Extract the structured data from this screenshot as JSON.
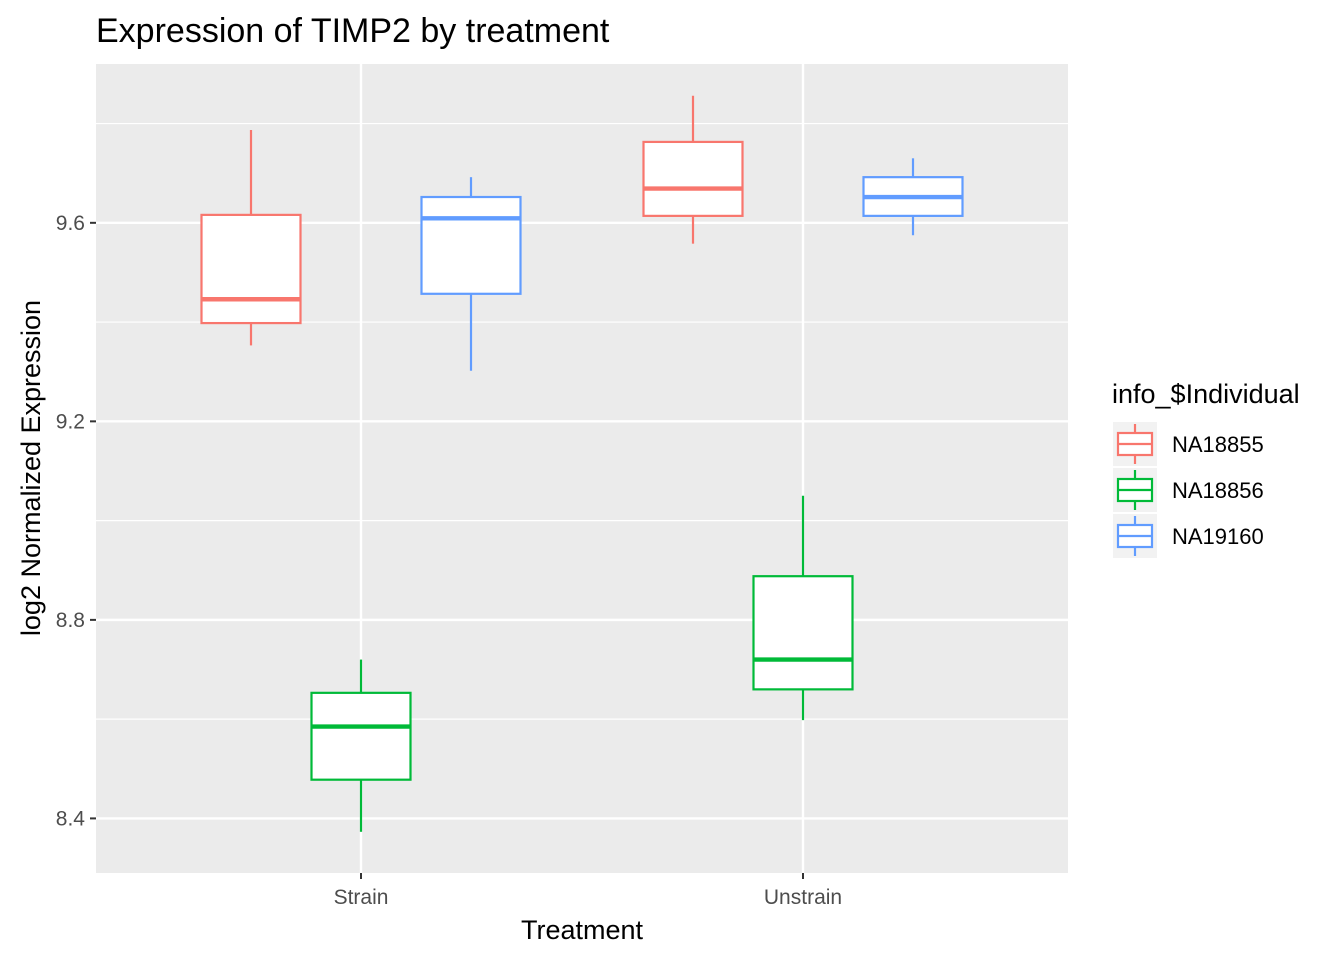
{
  "chart_data": {
    "type": "boxplot",
    "title": "Expression of TIMP2 by treatment",
    "xlabel": "Treatment",
    "ylabel": "log2 Normalized Expression",
    "categories": [
      "Strain",
      "Unstrain"
    ],
    "ylim": [
      8.29,
      9.92
    ],
    "yticks": [
      8.4,
      8.8,
      9.2,
      9.6
    ],
    "ytick_labels": [
      "8.4",
      "8.8",
      "9.2",
      "9.6"
    ],
    "grid": true,
    "legend": {
      "title": "info_$Individual",
      "position": "right",
      "entries": [
        "NA18855",
        "NA18856",
        "NA19160"
      ]
    },
    "series": [
      {
        "name": "NA18855",
        "color": "#F8766D",
        "boxes": [
          {
            "category": "Strain",
            "lower_whisker": 9.353,
            "q1": 9.398,
            "median": 9.446,
            "q3": 9.616,
            "upper_whisker": 9.787
          },
          {
            "category": "Unstrain",
            "lower_whisker": 9.558,
            "q1": 9.614,
            "median": 9.669,
            "q3": 9.763,
            "upper_whisker": 9.856
          }
        ]
      },
      {
        "name": "NA18856",
        "color": "#00BA38",
        "boxes": [
          {
            "category": "Strain",
            "lower_whisker": 8.373,
            "q1": 8.478,
            "median": 8.585,
            "q3": 8.653,
            "upper_whisker": 8.72
          },
          {
            "category": "Unstrain",
            "lower_whisker": 8.598,
            "q1": 8.66,
            "median": 8.72,
            "q3": 8.888,
            "upper_whisker": 9.05
          }
        ]
      },
      {
        "name": "NA19160",
        "color": "#619CFF",
        "boxes": [
          {
            "category": "Strain",
            "lower_whisker": 9.302,
            "q1": 9.457,
            "median": 9.609,
            "q3": 9.652,
            "upper_whisker": 9.692
          },
          {
            "category": "Unstrain",
            "lower_whisker": 9.575,
            "q1": 9.614,
            "median": 9.652,
            "q3": 9.692,
            "upper_whisker": 9.73
          }
        ]
      }
    ]
  }
}
